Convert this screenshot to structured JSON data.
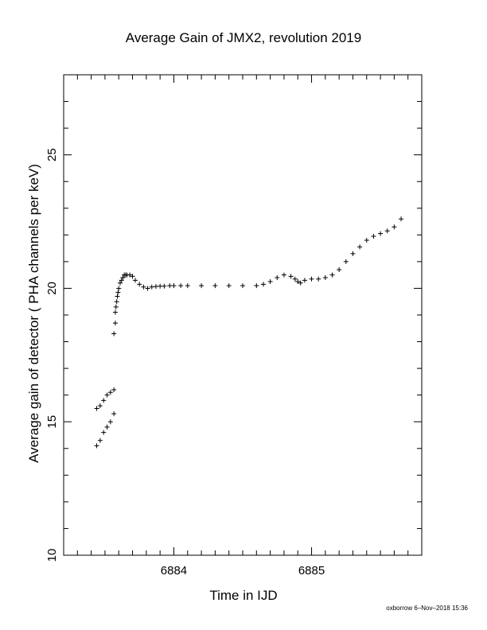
{
  "chart_data": {
    "type": "scatter",
    "title": "Average Gain of JMX2, revolution 2019",
    "xlabel": "Time in IJD",
    "ylabel": "Average gain of detector ( PHA channels per keV)",
    "xlim": [
      6883.2,
      6885.8
    ],
    "ylim": [
      10,
      28
    ],
    "x_tick_labels": [
      "6884",
      "6885"
    ],
    "x_ticks_labeled": [
      6884,
      6885
    ],
    "y_tick_labels": [
      "10",
      "15",
      "20",
      "25"
    ],
    "y_ticks_labeled": [
      10,
      15,
      20,
      25
    ],
    "marker": "+",
    "color": "#000000",
    "series": [
      {
        "x": [
          6883.44,
          6883.465,
          6883.49,
          6883.515,
          6883.54,
          6883.565,
          6883.44,
          6883.465,
          6883.49,
          6883.515,
          6883.54,
          6883.565,
          6883.565,
          6883.575,
          6883.575,
          6883.58,
          6883.585,
          6883.59,
          6883.595,
          6883.6,
          6883.61,
          6883.62,
          6883.63,
          6883.64,
          6883.65,
          6883.66,
          6883.68,
          6883.7,
          6883.72,
          6883.75,
          6883.78,
          6883.81,
          6883.84,
          6883.87,
          6883.9,
          6883.93,
          6883.97,
          6884.0,
          6884.05,
          6884.1,
          6884.2,
          6884.3,
          6884.4,
          6884.5,
          6884.6,
          6884.65,
          6884.7,
          6884.75,
          6884.8,
          6884.85,
          6884.88,
          6884.9,
          6884.92,
          6884.95,
          6885.0,
          6885.05,
          6885.1,
          6885.15,
          6885.2,
          6885.25,
          6885.3,
          6885.35,
          6885.4,
          6885.45,
          6885.5,
          6885.55,
          6885.6,
          6885.65
        ],
        "y": [
          14.1,
          14.3,
          14.6,
          14.8,
          15.0,
          15.3,
          15.5,
          15.6,
          15.8,
          16.0,
          16.1,
          16.2,
          18.3,
          18.7,
          19.1,
          19.3,
          19.5,
          19.7,
          19.85,
          20.0,
          20.2,
          20.3,
          20.4,
          20.5,
          20.5,
          20.5,
          20.5,
          20.45,
          20.3,
          20.15,
          20.05,
          20.0,
          20.05,
          20.07,
          20.08,
          20.08,
          20.1,
          20.1,
          20.1,
          20.1,
          20.1,
          20.1,
          20.1,
          20.1,
          20.1,
          20.15,
          20.25,
          20.4,
          20.5,
          20.45,
          20.35,
          20.25,
          20.2,
          20.3,
          20.35,
          20.35,
          20.4,
          20.5,
          20.7,
          21.0,
          21.3,
          21.55,
          21.8,
          21.95,
          22.05,
          22.15,
          22.3,
          22.6
        ]
      }
    ]
  },
  "footer": "oxborrow  6–Nov–2018 15:36"
}
